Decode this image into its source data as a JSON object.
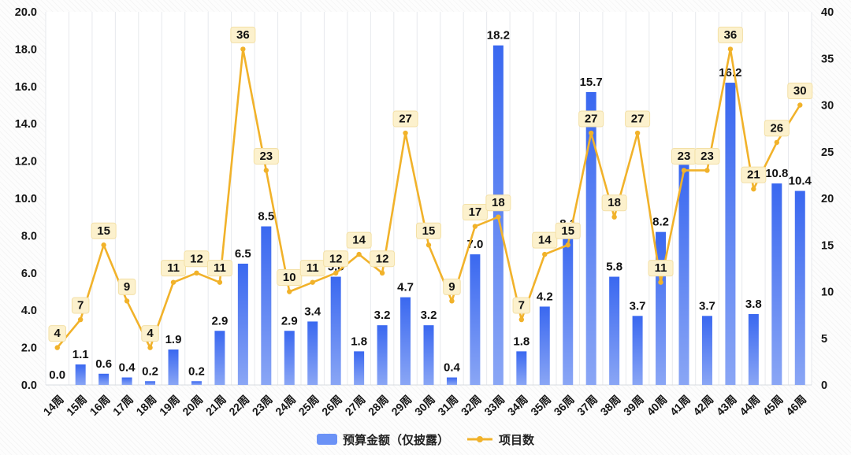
{
  "chart_data": {
    "type": "bar",
    "combo": "bar-line",
    "title": "",
    "categories": [
      "14周",
      "15周",
      "16周",
      "17周",
      "18周",
      "19周",
      "20周",
      "21周",
      "22周",
      "23周",
      "24周",
      "25周",
      "26周",
      "27周",
      "28周",
      "29周",
      "30周",
      "31周",
      "32周",
      "33周",
      "34周",
      "35周",
      "36周",
      "37周",
      "38周",
      "39周",
      "40周",
      "41周",
      "42周",
      "43周",
      "44周",
      "45周",
      "46周"
    ],
    "series": [
      {
        "name": "预算金额（仅披露）",
        "type": "bar",
        "axis": "left",
        "values": [
          0.0,
          1.1,
          0.6,
          0.4,
          0.2,
          1.9,
          0.2,
          2.9,
          6.5,
          8.5,
          2.9,
          3.4,
          5.8,
          1.8,
          3.2,
          4.7,
          3.2,
          0.4,
          7.0,
          18.2,
          1.8,
          4.2,
          8.1,
          15.7,
          5.8,
          3.7,
          8.2,
          11.8,
          3.7,
          16.2,
          3.8,
          10.8,
          10.4
        ],
        "bar_color_top": "#3a68f0",
        "bar_color_bottom": "#8aa6f5",
        "legend_swatch_color": "#6b92f6"
      },
      {
        "name": "项目数",
        "type": "line",
        "axis": "right",
        "values": [
          4,
          7,
          15,
          9,
          4,
          11,
          12,
          11,
          36,
          23,
          10,
          11,
          12,
          14,
          12,
          27,
          15,
          9,
          17,
          18,
          7,
          14,
          15,
          27,
          18,
          27,
          11,
          23,
          23,
          36,
          21,
          26,
          30
        ],
        "line_color": "#f1b22a",
        "label_bg": "#fcf1cd",
        "label_border": "#f3e0a6"
      }
    ],
    "left_axis": {
      "min": 0,
      "max": 20,
      "step": 2,
      "tick_labels": [
        "0.0",
        "2.0",
        "4.0",
        "6.0",
        "8.0",
        "10.0",
        "12.0",
        "14.0",
        "16.0",
        "18.0",
        "20.0"
      ]
    },
    "right_axis": {
      "min": 0,
      "max": 40,
      "step": 5,
      "tick_labels": [
        "0",
        "5",
        "10",
        "15",
        "20",
        "25",
        "30",
        "35",
        "40"
      ]
    },
    "grid": {
      "vertical_lines": true,
      "horizontal_lines": false
    },
    "legend_position": "bottom-center",
    "text_color": "#161616",
    "gridline_color": "#e7e9ed",
    "axis_line_color": "#d8dce1"
  }
}
